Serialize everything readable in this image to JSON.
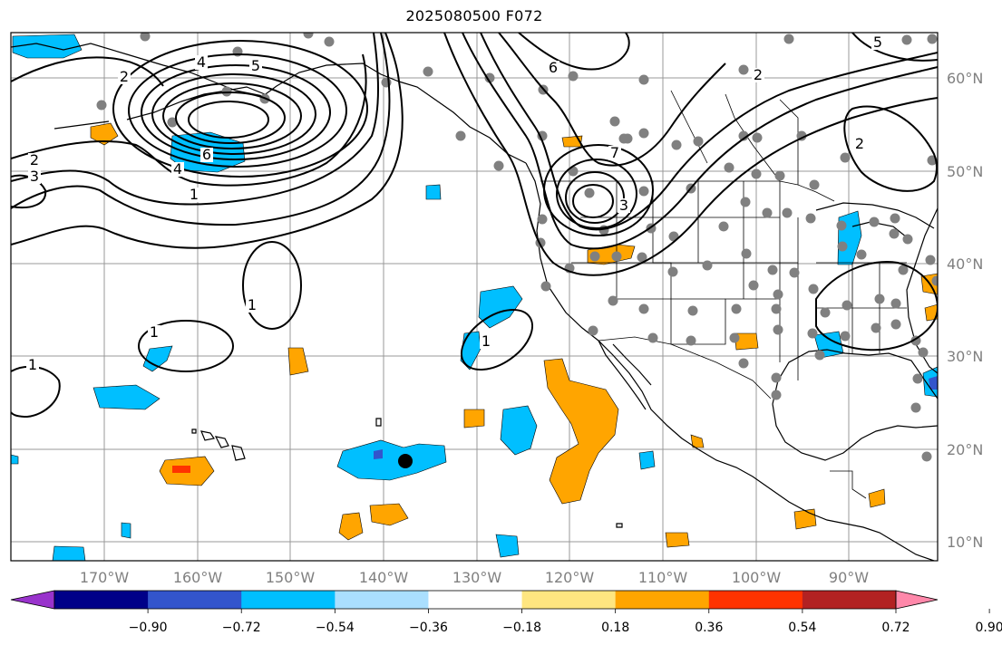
{
  "title": "2025080500 F072",
  "map": {
    "lon_ticks": [
      "170°W",
      "160°W",
      "150°W",
      "140°W",
      "130°W",
      "120°W",
      "110°W",
      "100°W",
      "90°W"
    ],
    "lat_ticks": [
      "60°N",
      "50°N",
      "40°N",
      "30°N",
      "20°N",
      "10°N"
    ],
    "gridlines": true,
    "storm_marker": {
      "lon": -137,
      "lat": 18.5
    }
  },
  "colorbar": {
    "labels": [
      "−0.90",
      "−0.72",
      "−0.54",
      "−0.36",
      "−0.18",
      "0.18",
      "0.36",
      "0.54",
      "0.72",
      "0.90"
    ],
    "colors": [
      "#9933cc",
      "#000088",
      "#3355cc",
      "#00bfff",
      "#aadfff",
      "#ffffff",
      "#ffe680",
      "#ffa500",
      "#ff3300",
      "#b22222",
      "#ff88aa"
    ]
  },
  "contour_labels": [
    "1",
    "1",
    "1",
    "1",
    "1",
    "2",
    "2",
    "2",
    "2",
    "3",
    "3",
    "4",
    "4",
    "5",
    "5",
    "6",
    "6",
    "7"
  ],
  "colors": {
    "station": "#808080",
    "contour": "#000000",
    "coast": "#000000",
    "grid": "#999999"
  }
}
